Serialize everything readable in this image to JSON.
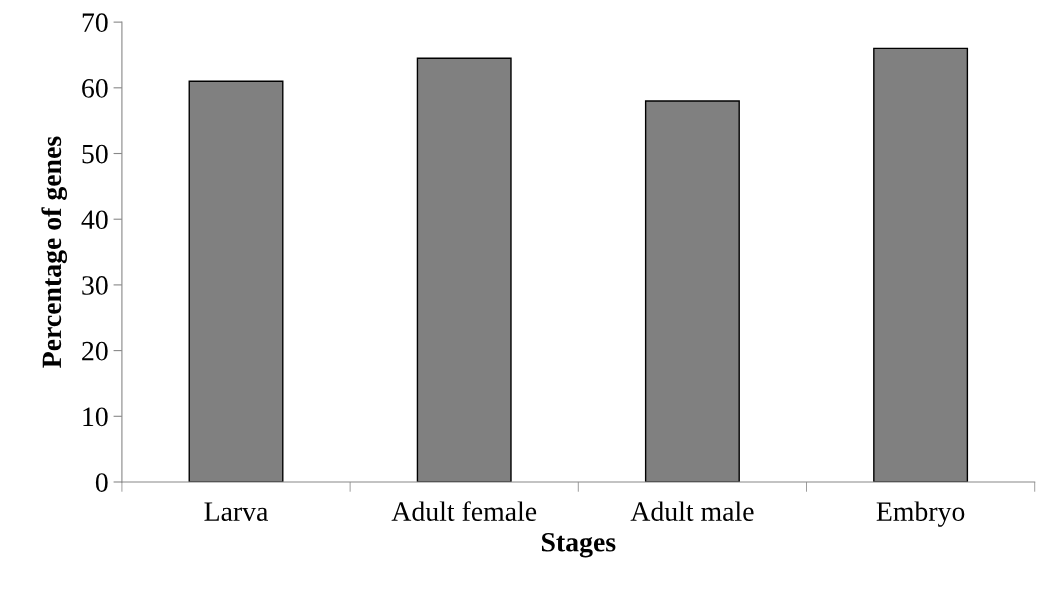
{
  "chart_data": {
    "type": "bar",
    "xlabel": "Stages",
    "ylabel": "Percentage of genes",
    "categories": [
      "Larva",
      "Adult female",
      "Adult male",
      "Embryo"
    ],
    "values": [
      61,
      64.5,
      58,
      66
    ],
    "color": "#808080",
    "ylim": [
      0,
      70
    ],
    "yticks": [
      0,
      10,
      20,
      30,
      40,
      50,
      60,
      70
    ],
    "grid": false
  }
}
